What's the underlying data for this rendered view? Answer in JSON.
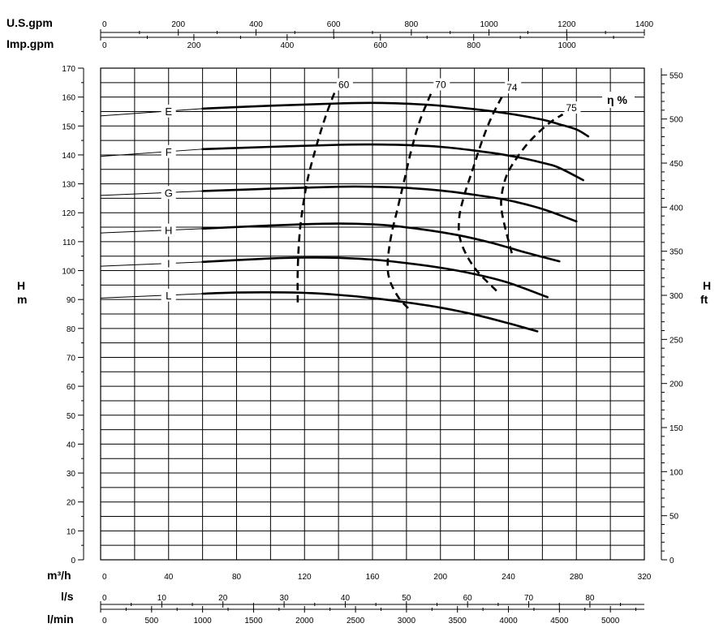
{
  "chart_data": {
    "type": "line",
    "title": "",
    "x_axes": {
      "usgpm": {
        "label": "U.S.gpm",
        "range": [
          0,
          1400
        ],
        "tick_values": [
          0,
          200,
          400,
          600,
          800,
          1000,
          1200,
          1400
        ],
        "tick_labels": [
          "0",
          "200",
          "400",
          "600",
          "800",
          "1000",
          "1200",
          "1400"
        ]
      },
      "impgpm": {
        "label": "Imp.gpm",
        "range": [
          0,
          1166
        ],
        "tick_values": [
          0,
          200,
          400,
          600,
          800,
          1000
        ],
        "tick_labels": [
          "0",
          "200",
          "400",
          "600",
          "800",
          "1000"
        ]
      },
      "m3h": {
        "label": "m³/h",
        "range": [
          0,
          320
        ],
        "tick_values": [
          0,
          40,
          80,
          120,
          160,
          200,
          240,
          280,
          320
        ],
        "tick_labels": [
          "0",
          "40",
          "80",
          "120",
          "160",
          "200",
          "240",
          "280",
          "320"
        ]
      },
      "ls": {
        "label": "l/s",
        "range": [
          0,
          88.9
        ],
        "tick_values": [
          0,
          10,
          20,
          30,
          40,
          50,
          60,
          70,
          80
        ],
        "tick_labels": [
          "0",
          "10",
          "20",
          "30",
          "40",
          "50",
          "60",
          "70",
          "80"
        ]
      },
      "lmin": {
        "label": "l/min",
        "range": [
          0,
          5333
        ],
        "tick_values": [
          0,
          500,
          1000,
          1500,
          2000,
          2500,
          3000,
          3500,
          4000,
          4500,
          5000
        ],
        "tick_labels": [
          "0",
          "500",
          "1000",
          "1500",
          "2000",
          "2500",
          "3000",
          "3500",
          "4000",
          "4500",
          "5000"
        ]
      }
    },
    "y_axes": {
      "left": {
        "label_top": "H",
        "label_bottom": "m",
        "range": [
          0,
          170
        ],
        "tick_values": [
          0,
          10,
          20,
          30,
          40,
          50,
          60,
          70,
          80,
          90,
          100,
          110,
          120,
          130,
          140,
          150,
          160,
          170
        ],
        "tick_labels": [
          "0",
          "10",
          "20",
          "30",
          "40",
          "50",
          "60",
          "70",
          "80",
          "90",
          "100",
          "110",
          "120",
          "130",
          "140",
          "150",
          "160",
          "170"
        ]
      },
      "right": {
        "label_top": "H",
        "label_bottom": "ft",
        "range": [
          0,
          557.7
        ],
        "tick_values": [
          0,
          50,
          100,
          150,
          200,
          250,
          300,
          350,
          400,
          450,
          500,
          550
        ],
        "tick_labels": [
          "0",
          "50",
          "100",
          "150",
          "200",
          "250",
          "300",
          "350",
          "400",
          "450",
          "500",
          "550"
        ]
      }
    },
    "grid": true,
    "series": [
      {
        "name": "E",
        "label_head": 155,
        "x": [
          60,
          100,
          140,
          160,
          180,
          200,
          220,
          240,
          260,
          270,
          280,
          287
        ],
        "y": [
          156,
          157,
          157.8,
          158,
          157.7,
          157,
          155.8,
          154.3,
          152.2,
          150.6,
          148.8,
          146.4
        ]
      },
      {
        "name": "F",
        "label_head": 141,
        "x": [
          60,
          100,
          140,
          160,
          180,
          200,
          220,
          240,
          260,
          270,
          284
        ],
        "y": [
          142,
          142.8,
          143.5,
          143.6,
          143.4,
          142.8,
          141.5,
          139.8,
          137.3,
          135.5,
          131.3
        ]
      },
      {
        "name": "G",
        "label_head": 127.5,
        "x": [
          60,
          100,
          140,
          160,
          180,
          200,
          220,
          240,
          260,
          280
        ],
        "y": [
          127.5,
          128.3,
          129,
          129,
          128.6,
          127.7,
          126.2,
          124.3,
          121.3,
          117
        ]
      },
      {
        "name": "H",
        "label_head": 114.5,
        "x": [
          60,
          100,
          130,
          150,
          170,
          190,
          210,
          230,
          250,
          270
        ],
        "y": [
          114.5,
          115.6,
          116.2,
          116.2,
          115.6,
          114.2,
          112.3,
          109.6,
          106.3,
          103.2
        ]
      },
      {
        "name": "I",
        "label_head": 103,
        "x": [
          60,
          100,
          120,
          140,
          160,
          180,
          200,
          220,
          240,
          263
        ],
        "y": [
          103,
          104.2,
          104.5,
          104.4,
          103.8,
          102.6,
          101,
          98.8,
          95.8,
          90.8
        ]
      },
      {
        "name": "L",
        "label_head": 92,
        "x": [
          60,
          80,
          100,
          120,
          140,
          160,
          180,
          200,
          220,
          240,
          257
        ],
        "y": [
          92,
          92.4,
          92.5,
          92.3,
          91.6,
          90.5,
          89,
          87.2,
          84.8,
          81.8,
          79
        ]
      }
    ],
    "efficiency_curves": {
      "title": "η %",
      "curves": [
        {
          "label": "60",
          "x": [
            116,
            116,
            117,
            119,
            122,
            126,
            130,
            134,
            138
          ],
          "y": [
            89,
            100,
            112,
            122,
            132,
            141,
            149,
            156,
            162
          ]
        },
        {
          "label": "70",
          "x": [
            181,
            175,
            170,
            169,
            171,
            175,
            179,
            183,
            188,
            195
          ],
          "y": [
            87,
            91,
            97,
            103,
            112,
            122,
            132,
            142,
            152,
            162
          ]
        },
        {
          "label": "74",
          "x": [
            233,
            220,
            212,
            211,
            214,
            219,
            224,
            230,
            237
          ],
          "y": [
            93,
            101,
            110,
            118,
            126,
            135,
            144,
            153,
            161
          ]
        },
        {
          "label": "75",
          "x": [
            242,
            238,
            236,
            236,
            239,
            245,
            253,
            264,
            272
          ],
          "y": [
            106,
            115,
            121,
            126,
            133,
            139,
            145,
            151,
            154
          ]
        }
      ]
    }
  }
}
